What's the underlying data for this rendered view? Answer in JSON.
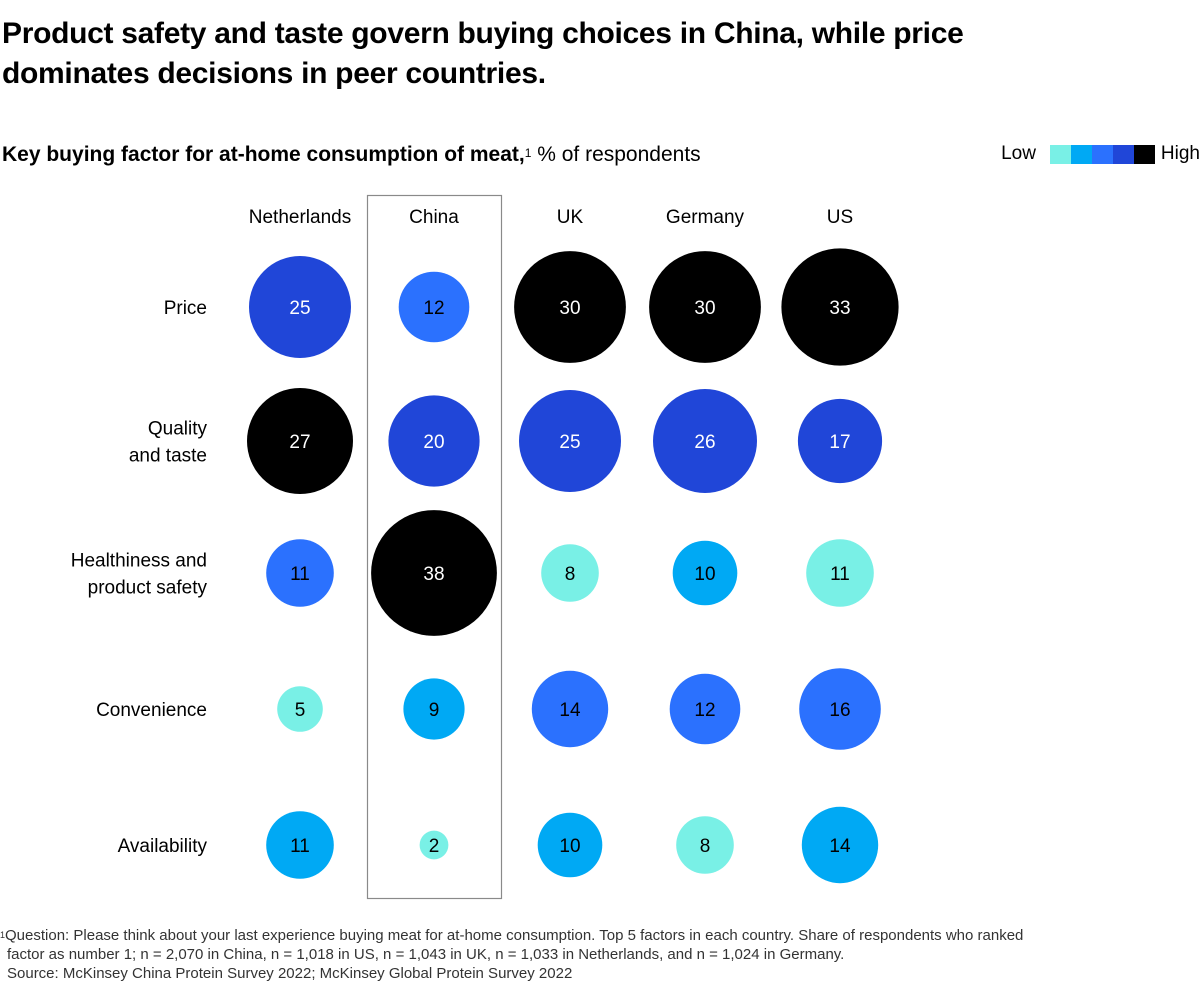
{
  "header": {
    "title": "Product safety and taste govern buying choices in China, while price dominates decisions in peer countries.",
    "subtitle_bold": "Key buying factor for at-home consumption of meat,",
    "subtitle_sup": "1",
    "subtitle_rest": " % of respondents"
  },
  "legend": {
    "low_label": "Low",
    "high_label": "High",
    "colors": [
      "#79f0e6",
      "#00a9f4",
      "#2b71fe",
      "#2046d8",
      "#000000"
    ]
  },
  "chart_data": {
    "type": "bubble-matrix",
    "title": "Key buying factor for at-home consumption of meat, % of respondents",
    "columns": [
      "Netherlands",
      "China",
      "UK",
      "Germany",
      "US"
    ],
    "highlighted_column": "China",
    "rows": [
      "Price",
      "Quality\nand taste",
      "Healthiness and\nproduct safety",
      "Convenience",
      "Availability"
    ],
    "values": [
      [
        25,
        12,
        30,
        30,
        33
      ],
      [
        27,
        20,
        25,
        26,
        17
      ],
      [
        11,
        38,
        8,
        10,
        11
      ],
      [
        5,
        9,
        14,
        12,
        16
      ],
      [
        11,
        2,
        10,
        8,
        14
      ]
    ],
    "color_levels": [
      [
        3,
        2,
        4,
        4,
        4
      ],
      [
        4,
        3,
        3,
        3,
        3
      ],
      [
        2,
        4,
        0,
        1,
        0
      ],
      [
        0,
        1,
        2,
        2,
        2
      ],
      [
        1,
        0,
        1,
        0,
        1
      ]
    ],
    "size_encoding": "area proportional to value",
    "legend": "top-right"
  },
  "footnote": {
    "sup": "1",
    "line1": "Question: Please think about your last experience buying meat for at-home consumption. Top 5 factors in each country. Share of respondents who ranked",
    "line2": "factor as number 1; n = 2,070 in China, n = 1,018 in US, n = 1,043 in UK, n = 1,033 in Netherlands, and n = 1,024 in Germany.",
    "source": "Source:  McKinsey China Protein Survey 2022; McKinsey Global Protein Survey 2022"
  }
}
